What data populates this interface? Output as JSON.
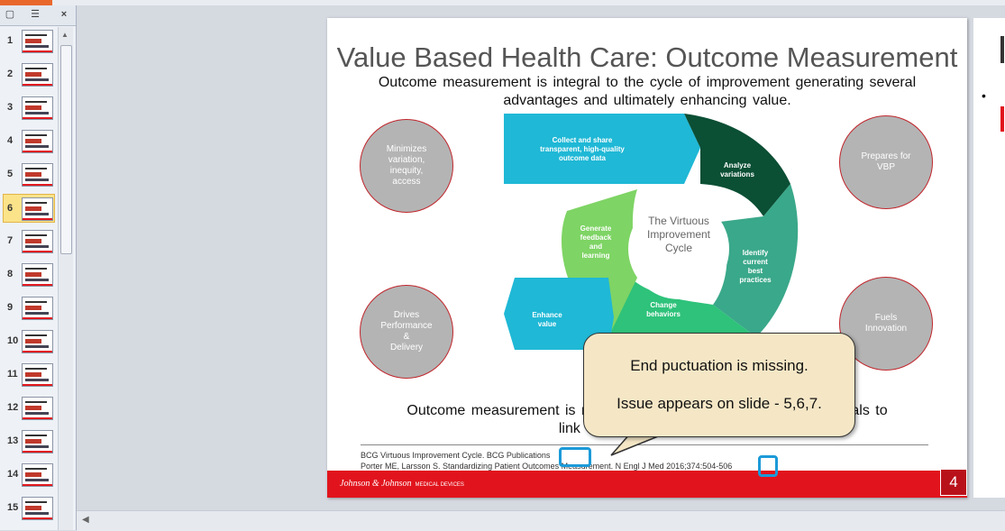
{
  "thumbnails": {
    "tabs": [
      "Slides",
      "Outline"
    ],
    "close_label": "×",
    "selected": 6,
    "numbers": [
      "1",
      "2",
      "3",
      "4",
      "5",
      "6",
      "7",
      "8",
      "9",
      "10",
      "11",
      "12",
      "13",
      "14",
      "15"
    ]
  },
  "slide": {
    "title": "Value Based Health Care: Outcome Measurement",
    "subtitle": "Outcome measurement is integral to the cycle of improvement generating several advantages and ultimately enhancing value.",
    "circles": {
      "top_left": "Minimizes\nvariation,\ninequity,\naccess",
      "bottom_left": "Drives\nPerformance\n&\nDelivery",
      "top_right": "Prepares for\nVBP",
      "bottom_right": "Fuels\nInnovation"
    },
    "cycle": {
      "center": "The Virtuous\nImprovement\nCycle",
      "collect": "Collect and share\ntransparent, high-quality\noutcome data",
      "analyze": "Analyze\nvariations",
      "identify": "Identify\ncurrent\nbest\npractices",
      "change": "Change\nbehaviors",
      "feedback": "Generate\nfeedback\nand\nlearning",
      "enhance": "Enhance\nvalue"
    },
    "bottom_text": "Outcome measurement is requi",
    "bottom_text_end": "ospitals to",
    "bottom_text_line2": "link changes b",
    "ref1": "BCG Virtuous Improvement Cycle. BCG Publications",
    "ref2": "Porter ME, Larsson S. Standardizing Patient Outcomes Measurement. N Engl J Med 2016;374:504-506",
    "brand": "Johnson & Johnson",
    "brand_sub": "MEDICAL DEVICES",
    "page_number": "4"
  },
  "callout": {
    "line1": "End puctuation is missing.",
    "line2": "Issue appears on slide - 5,6,7."
  },
  "colors": {
    "teal_light": "#1fb8d6",
    "dark_green": "#0b4f35",
    "teal_green": "#3aa88a",
    "green": "#2ec27a",
    "light_green": "#7ed464",
    "accent_red": "#e1141d",
    "highlight_blue": "#1b9ad8"
  }
}
